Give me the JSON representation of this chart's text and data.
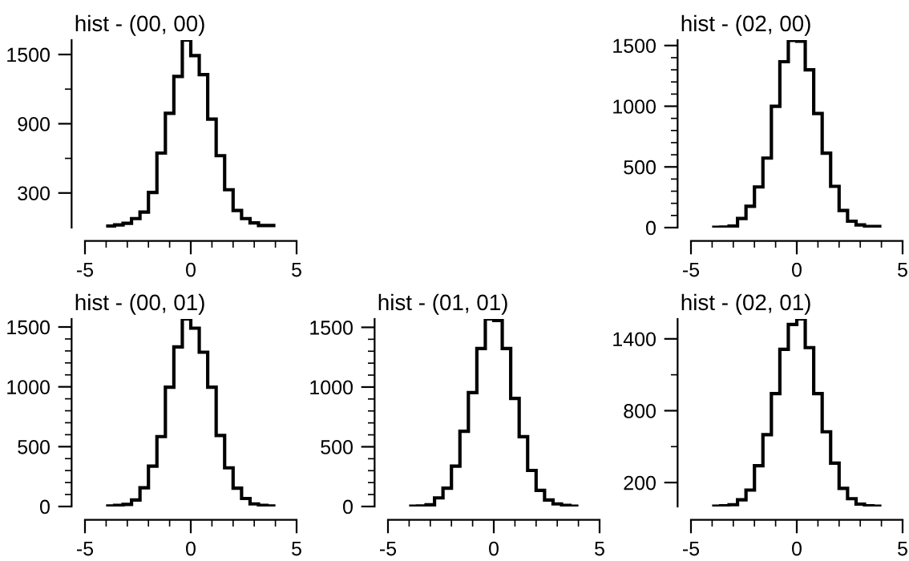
{
  "chart_data": [
    {
      "type": "histogram",
      "title": "hist - (00, 00)",
      "color": "#000000",
      "bins": [
        -4,
        -3.6,
        -3.2,
        -2.8,
        -2.4,
        -2,
        -1.6,
        -1.2,
        -0.8,
        -0.4,
        0,
        0.4,
        0.8,
        1.2,
        1.6,
        2,
        2.4,
        2.8,
        3.2,
        3.6,
        4
      ],
      "values": [
        14,
        23,
        37,
        78,
        134,
        305,
        646,
        990,
        1310,
        1625,
        1490,
        1325,
        940,
        623,
        328,
        148,
        78,
        41,
        18,
        18
      ],
      "xlim": [
        -5,
        5
      ],
      "ylim": [
        0,
        1625
      ],
      "xticks": [
        -5,
        {
          "value": -4,
          "label": null
        },
        {
          "value": -3,
          "label": null
        },
        {
          "value": -2,
          "label": null
        },
        {
          "value": -1,
          "label": null
        },
        0,
        {
          "value": 1,
          "label": null
        },
        {
          "value": 2,
          "label": null
        },
        {
          "value": 3,
          "label": null
        },
        {
          "value": 4,
          "label": null
        },
        5
      ],
      "yticks": [
        300,
        {
          "value": 600,
          "label": null
        },
        900,
        {
          "value": 1200,
          "label": null
        },
        1500
      ],
      "grid": false
    },
    {
      "type": "histogram",
      "title": "hist - (02, 00)",
      "color": "#000000",
      "bins": [
        -4,
        -3.6,
        -3.2,
        -2.8,
        -2.4,
        -2,
        -1.6,
        -1.2,
        -0.8,
        -0.4,
        0,
        0.4,
        0.8,
        1.2,
        1.6,
        2,
        2.4,
        2.8,
        3.2,
        3.6,
        4
      ],
      "values": [
        2,
        5,
        13,
        75,
        176,
        335,
        573,
        1000,
        1367,
        1543,
        1535,
        1300,
        940,
        613,
        340,
        141,
        53,
        22,
        9,
        9
      ],
      "xlim": [
        -5,
        5
      ],
      "ylim": [
        0,
        1545
      ],
      "xticks": [
        -5,
        {
          "value": -4,
          "label": null
        },
        {
          "value": -3,
          "label": null
        },
        {
          "value": -2,
          "label": null
        },
        {
          "value": -1,
          "label": null
        },
        0,
        {
          "value": 1,
          "label": null
        },
        {
          "value": 2,
          "label": null
        },
        {
          "value": 3,
          "label": null
        },
        {
          "value": 4,
          "label": null
        },
        5
      ],
      "yticks": [
        0,
        {
          "value": 100,
          "label": null
        },
        {
          "value": 200,
          "label": null
        },
        {
          "value": 300,
          "label": null
        },
        {
          "value": 400,
          "label": null
        },
        500,
        {
          "value": 600,
          "label": null
        },
        {
          "value": 700,
          "label": null
        },
        {
          "value": 800,
          "label": null
        },
        {
          "value": 900,
          "label": null
        },
        1000,
        {
          "value": 1100,
          "label": null
        },
        {
          "value": 1200,
          "label": null
        },
        {
          "value": 1300,
          "label": null
        },
        {
          "value": 1400,
          "label": null
        },
        1500
      ],
      "grid": false
    },
    {
      "type": "histogram",
      "title": "hist - (00, 01)",
      "color": "#000000",
      "bins": [
        -4,
        -3.6,
        -3.2,
        -2.8,
        -2.4,
        -2,
        -1.6,
        -1.2,
        -0.8,
        -0.4,
        0,
        0.4,
        0.8,
        1.2,
        1.6,
        2,
        2.4,
        2.8,
        3.2,
        3.6,
        4
      ],
      "values": [
        4,
        9,
        18,
        54,
        157,
        337,
        584,
        997,
        1333,
        1567,
        1490,
        1289,
        997,
        593,
        323,
        153,
        67,
        22,
        9,
        4
      ],
      "xlim": [
        -5,
        5
      ],
      "ylim": [
        0,
        1567
      ],
      "xticks": [
        -5,
        {
          "value": -4,
          "label": null
        },
        {
          "value": -3,
          "label": null
        },
        {
          "value": -2,
          "label": null
        },
        {
          "value": -1,
          "label": null
        },
        0,
        {
          "value": 1,
          "label": null
        },
        {
          "value": 2,
          "label": null
        },
        {
          "value": 3,
          "label": null
        },
        {
          "value": 4,
          "label": null
        },
        5
      ],
      "yticks": [
        0,
        {
          "value": 100,
          "label": null
        },
        {
          "value": 200,
          "label": null
        },
        {
          "value": 300,
          "label": null
        },
        {
          "value": 400,
          "label": null
        },
        500,
        {
          "value": 600,
          "label": null
        },
        {
          "value": 700,
          "label": null
        },
        {
          "value": 800,
          "label": null
        },
        {
          "value": 900,
          "label": null
        },
        1000,
        {
          "value": 1100,
          "label": null
        },
        {
          "value": 1200,
          "label": null
        },
        {
          "value": 1300,
          "label": null
        },
        {
          "value": 1400,
          "label": null
        },
        1500
      ],
      "grid": false
    },
    {
      "type": "histogram",
      "title": "hist - (01, 01)",
      "color": "#000000",
      "bins": [
        -4,
        -3.6,
        -3.2,
        -2.8,
        -2.4,
        -2,
        -1.6,
        -1.2,
        -0.8,
        -0.4,
        0,
        0.4,
        0.8,
        1.2,
        1.6,
        2,
        2.4,
        2.8,
        3.2,
        3.6,
        4
      ],
      "values": [
        2,
        5,
        14,
        72,
        153,
        338,
        630,
        954,
        1323,
        1570,
        1557,
        1323,
        905,
        585,
        302,
        135,
        54,
        22,
        9,
        2
      ],
      "xlim": [
        -5,
        5
      ],
      "ylim": [
        0,
        1570
      ],
      "xticks": [
        -5,
        {
          "value": -4,
          "label": null
        },
        {
          "value": -3,
          "label": null
        },
        {
          "value": -2,
          "label": null
        },
        {
          "value": -1,
          "label": null
        },
        0,
        {
          "value": 1,
          "label": null
        },
        {
          "value": 2,
          "label": null
        },
        {
          "value": 3,
          "label": null
        },
        {
          "value": 4,
          "label": null
        },
        5
      ],
      "yticks": [
        0,
        {
          "value": 100,
          "label": null
        },
        {
          "value": 200,
          "label": null
        },
        {
          "value": 300,
          "label": null
        },
        {
          "value": 400,
          "label": null
        },
        500,
        {
          "value": 600,
          "label": null
        },
        {
          "value": 700,
          "label": null
        },
        {
          "value": 800,
          "label": null
        },
        {
          "value": 900,
          "label": null
        },
        1000,
        {
          "value": 1100,
          "label": null
        },
        {
          "value": 1200,
          "label": null
        },
        {
          "value": 1300,
          "label": null
        },
        {
          "value": 1400,
          "label": null
        },
        1500
      ],
      "grid": false
    },
    {
      "type": "histogram",
      "title": "hist - (02, 01)",
      "color": "#000000",
      "bins": [
        -4,
        -3.6,
        -3.2,
        -2.8,
        -2.4,
        -2,
        -1.6,
        -1.2,
        -0.8,
        -0.4,
        0,
        0.4,
        0.8,
        1.2,
        1.6,
        2,
        2.4,
        2.8,
        3.2,
        3.6,
        4
      ],
      "values": [
        2,
        6,
        15,
        56,
        137,
        340,
        600,
        943,
        1313,
        1520,
        1566,
        1327,
        943,
        624,
        362,
        151,
        65,
        20,
        6,
        2
      ],
      "xlim": [
        -5,
        5
      ],
      "ylim": [
        0,
        1566
      ],
      "xticks": [
        -5,
        {
          "value": -4,
          "label": null
        },
        {
          "value": -3,
          "label": null
        },
        {
          "value": -2,
          "label": null
        },
        {
          "value": -1,
          "label": null
        },
        0,
        {
          "value": 1,
          "label": null
        },
        {
          "value": 2,
          "label": null
        },
        {
          "value": 3,
          "label": null
        },
        {
          "value": 4,
          "label": null
        },
        5
      ],
      "yticks": [
        200,
        {
          "value": 500,
          "label": null
        },
        800,
        {
          "value": 1100,
          "label": null
        },
        1400
      ],
      "grid": false
    }
  ]
}
